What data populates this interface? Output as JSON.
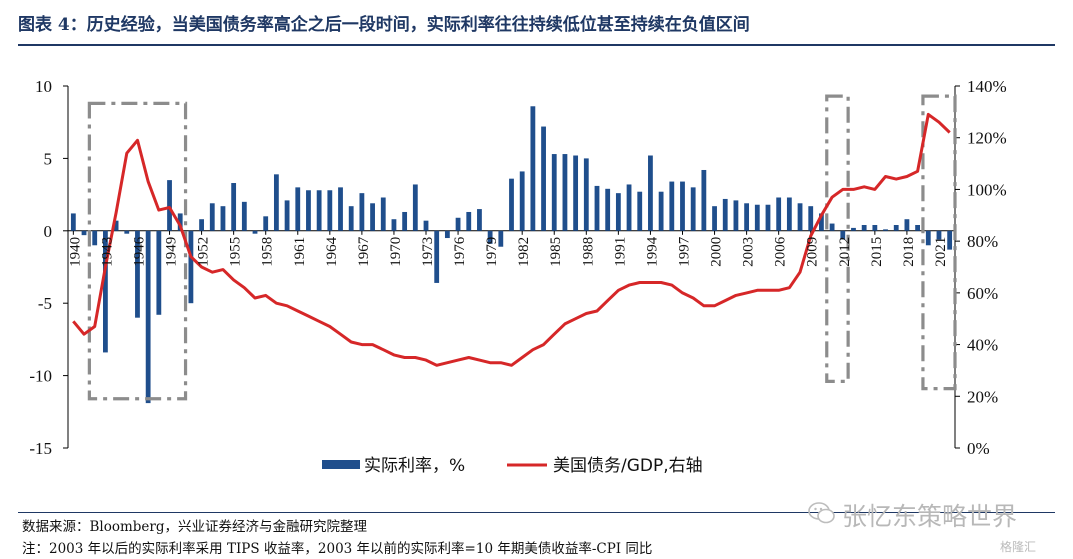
{
  "header": {
    "title": "图表 4：历史经验，当美国债务率高企之后一段时间，实际利率往往持续低位甚至持续在负值区间"
  },
  "footer": {
    "source": "数据来源：Bloomberg，兴业证券经济与金融研究院整理",
    "note": "注：2003 年以后的实际利率采用 TIPS 收益率，2003 年以前的实际利率=10 年期美债收益率-CPI 同比"
  },
  "watermark": {
    "text": "张忆东策略世界",
    "brand": "格隆汇"
  },
  "colors": {
    "bar": "#1f4e8c",
    "line": "#d62728",
    "box": "#8c8c8c",
    "title": "#1f3864"
  },
  "chart_data": {
    "type": "bar",
    "x_tick_labels": [
      "1940",
      "1943",
      "1946",
      "1949",
      "1952",
      "1955",
      "1958",
      "1961",
      "1964",
      "1967",
      "1970",
      "1973",
      "1976",
      "1979",
      "1982",
      "1985",
      "1988",
      "1991",
      "1994",
      "1997",
      "2000",
      "2003",
      "2006",
      "2009",
      "2012",
      "2015",
      "2018",
      "2021"
    ],
    "y_left": {
      "min": -15,
      "max": 10,
      "ticks": [
        10,
        5,
        0,
        -5,
        -10,
        -15
      ],
      "tick_labels": [
        "10",
        "5",
        "0",
        "-5",
        "-10",
        "-15"
      ]
    },
    "y_right": {
      "min": 0,
      "max": 140,
      "ticks": [
        0,
        20,
        40,
        60,
        80,
        100,
        120,
        140
      ],
      "tick_labels": [
        "0%",
        "20%",
        "40%",
        "60%",
        "80%",
        "100%",
        "120%",
        "140%"
      ]
    },
    "series": [
      {
        "name": "实际利率，%",
        "type": "bar",
        "axis": "left",
        "x": [
          1940,
          1941,
          1942,
          1943,
          1944,
          1945,
          1946,
          1947,
          1948,
          1949,
          1950,
          1951,
          1952,
          1953,
          1954,
          1955,
          1956,
          1957,
          1958,
          1959,
          1960,
          1961,
          1962,
          1963,
          1964,
          1965,
          1966,
          1967,
          1968,
          1969,
          1970,
          1971,
          1972,
          1973,
          1974,
          1975,
          1976,
          1977,
          1978,
          1979,
          1980,
          1981,
          1982,
          1983,
          1984,
          1985,
          1986,
          1987,
          1988,
          1989,
          1990,
          1991,
          1992,
          1993,
          1994,
          1995,
          1996,
          1997,
          1998,
          1999,
          2000,
          2001,
          2002,
          2003,
          2004,
          2005,
          2006,
          2007,
          2008,
          2009,
          2010,
          2011,
          2012,
          2013,
          2014,
          2015,
          2016,
          2017,
          2018,
          2019,
          2020,
          2021,
          2022
        ],
        "values": [
          1.2,
          -0.3,
          -1.0,
          -8.4,
          0.7,
          -0.2,
          -6.0,
          -11.9,
          -5.8,
          3.5,
          1.2,
          -5.0,
          0.8,
          1.9,
          1.7,
          3.3,
          2.0,
          -0.2,
          1.0,
          3.9,
          2.1,
          3.0,
          2.8,
          2.8,
          2.8,
          3.0,
          1.7,
          2.6,
          1.9,
          2.3,
          0.8,
          1.3,
          3.2,
          0.7,
          -3.6,
          -0.5,
          0.9,
          1.3,
          1.5,
          -0.9,
          -1.1,
          3.6,
          4.1,
          8.6,
          7.2,
          5.3,
          5.3,
          5.2,
          5.0,
          3.1,
          2.9,
          2.6,
          3.2,
          2.7,
          5.2,
          2.7,
          3.4,
          3.4,
          3.0,
          4.2,
          1.7,
          2.2,
          2.1,
          1.9,
          1.8,
          1.8,
          2.3,
          2.3,
          1.9,
          1.7,
          1.2,
          0.5,
          -0.6,
          0.2,
          0.4,
          0.4,
          0.1,
          0.4,
          0.8,
          0.4,
          -1.0,
          -0.6,
          -1.3
        ]
      },
      {
        "name": "美国债务/GDP,右轴",
        "type": "line",
        "axis": "right",
        "x": [
          1940,
          1941,
          1942,
          1943,
          1944,
          1945,
          1946,
          1947,
          1948,
          1949,
          1950,
          1951,
          1952,
          1953,
          1954,
          1955,
          1956,
          1957,
          1958,
          1959,
          1960,
          1961,
          1962,
          1963,
          1964,
          1965,
          1966,
          1967,
          1968,
          1969,
          1970,
          1971,
          1972,
          1973,
          1974,
          1975,
          1976,
          1977,
          1978,
          1979,
          1980,
          1981,
          1982,
          1983,
          1984,
          1985,
          1986,
          1987,
          1988,
          1989,
          1990,
          1991,
          1992,
          1993,
          1994,
          1995,
          1996,
          1997,
          1998,
          1999,
          2000,
          2001,
          2002,
          2003,
          2004,
          2005,
          2006,
          2007,
          2008,
          2009,
          2010,
          2011,
          2012,
          2013,
          2014,
          2015,
          2016,
          2017,
          2018,
          2019,
          2020,
          2021,
          2022
        ],
        "values": [
          49,
          44,
          47,
          70,
          91,
          114,
          119,
          103,
          92,
          93,
          86,
          74,
          70,
          68,
          69,
          65,
          62,
          58,
          59,
          56,
          55,
          53,
          51,
          49,
          47,
          44,
          41,
          40,
          40,
          38,
          36,
          35,
          35,
          34,
          32,
          33,
          34,
          35,
          34,
          33,
          33,
          32,
          35,
          38,
          40,
          44,
          48,
          50,
          52,
          53,
          57,
          61,
          63,
          64,
          64,
          64,
          63,
          60,
          58,
          55,
          55,
          57,
          59,
          60,
          61,
          61,
          61,
          62,
          68,
          82,
          90,
          97,
          100,
          100,
          101,
          100,
          105,
          104,
          105,
          107,
          129,
          126,
          122
        ]
      }
    ],
    "highlight_boxes": [
      {
        "x_start": 1942,
        "x_end": 1950,
        "y_top": 8.8,
        "y_bottom": -11.6
      },
      {
        "x_start": 2011,
        "x_end": 2012,
        "y_top": 9.3,
        "y_bottom": -10.4
      },
      {
        "x_start": 2020,
        "x_end": 2022,
        "y_top": 9.3,
        "y_bottom": -10.9
      }
    ],
    "legend": {
      "position": "bottom",
      "bar_label": "实际利率，%",
      "line_label": "美国债务/GDP,右轴"
    }
  }
}
